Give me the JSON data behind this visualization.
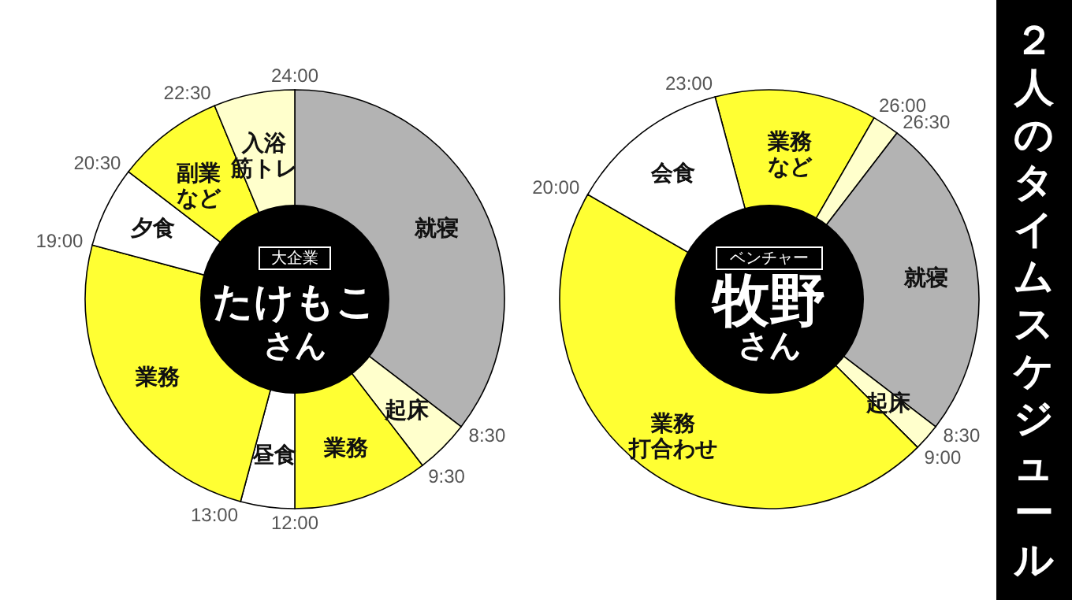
{
  "chart_data": [
    {
      "type": "donut",
      "title": "たけもこ",
      "subtitle": "さん",
      "annotations": [
        "大企業",
        "24:00",
        "8:30",
        "9:30",
        "12:00",
        "13:00",
        "19:00",
        "20:30",
        "22:30"
      ],
      "categories": [
        "就寝",
        "起床",
        "業務",
        "昼食",
        "業務",
        "夕食",
        "副業など",
        "入浴筋トレ"
      ],
      "values": [
        35.4166,
        4.1667,
        10.4167,
        4.1667,
        25,
        6.25,
        8.3333,
        6.25
      ],
      "colors": [
        "#b3b3b3",
        "#ffffcc",
        "#ffff33",
        "#ffffff",
        "#ffff33",
        "#ffffff",
        "#ffff33",
        "#ffffcc"
      ]
    },
    {
      "type": "donut",
      "title": "牧野",
      "subtitle": "さん",
      "annotations": [
        "ベンチャー",
        "23:00",
        "26:00",
        "26:30",
        "8:30",
        "9:00",
        "20:00"
      ],
      "categories": [
        "業務など",
        null,
        "就寝",
        "起床",
        "業務打合わせ",
        "会食"
      ],
      "values": [
        12.5,
        2.0833,
        25,
        2.0833,
        45.8334,
        12.5
      ],
      "colors": [
        "#ffff33",
        "#ffffcc",
        "#b3b3b3",
        "#ffffcc",
        "#ffff33",
        "#ffffff"
      ]
    },
    {
      "type": "other",
      "title": "２人のタイムスケジュール"
    }
  ]
}
